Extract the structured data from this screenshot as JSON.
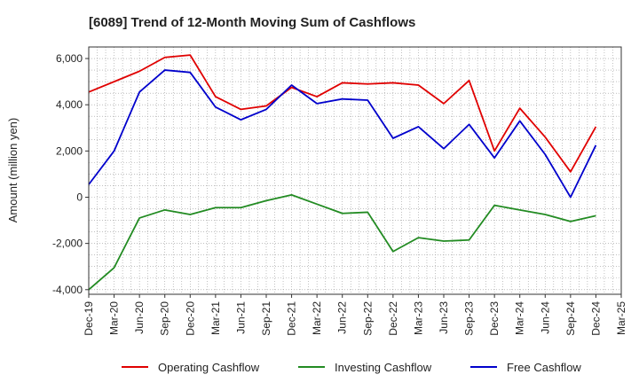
{
  "chart_data": {
    "type": "line",
    "title": "[6089]  Trend of 12-Month Moving Sum of Cashflows",
    "xlabel": "",
    "ylabel": "Amount (million yen)",
    "ylim": [
      -4200,
      6500
    ],
    "yticks": [
      -4000,
      -2000,
      0,
      2000,
      4000,
      6000
    ],
    "ytick_labels": [
      "-4,000",
      "-2,000",
      "0",
      "2,000",
      "4,000",
      "6,000"
    ],
    "x_tick_labels": [
      "Dec-19",
      "Mar-20",
      "Jun-20",
      "Sep-20",
      "Dec-20",
      "Mar-21",
      "Jun-21",
      "Sep-21",
      "Dec-21",
      "Mar-22",
      "Jun-22",
      "Sep-22",
      "Dec-22",
      "Mar-23",
      "Jun-23",
      "Sep-23",
      "Dec-23",
      "Mar-24",
      "Jun-24",
      "Sep-24",
      "Dec-24",
      "Mar-25"
    ],
    "x": [
      "Dec-19",
      "Mar-20",
      "Jun-20",
      "Sep-20",
      "Dec-20",
      "Mar-21",
      "Jun-21",
      "Sep-21",
      "Dec-21",
      "Mar-22",
      "Jun-22",
      "Sep-22",
      "Dec-22",
      "Mar-23",
      "Jun-23",
      "Sep-23",
      "Dec-23",
      "Mar-24",
      "Jun-24",
      "Sep-24",
      "Dec-24"
    ],
    "grid": true,
    "legend_position": "bottom",
    "series": [
      {
        "name": "Operating Cashflow",
        "color": "#e00000",
        "values": [
          4550,
          5000,
          5450,
          6050,
          6150,
          4350,
          3800,
          3950,
          4750,
          4350,
          4950,
          4900,
          4950,
          4850,
          4050,
          5050,
          2000,
          3850,
          2600,
          1100,
          3050
        ]
      },
      {
        "name": "Investing Cashflow",
        "color": "#228b22",
        "values": [
          -4000,
          -3050,
          -900,
          -550,
          -750,
          -450,
          -450,
          -150,
          100,
          -300,
          -700,
          -650,
          -2350,
          -1750,
          -1900,
          -1850,
          -350,
          -550,
          -750,
          -1050,
          -800
        ]
      },
      {
        "name": "Free Cashflow",
        "color": "#0000cc",
        "values": [
          550,
          2000,
          4550,
          5500,
          5400,
          3900,
          3350,
          3800,
          4850,
          4050,
          4250,
          4200,
          2550,
          3050,
          2100,
          3150,
          1700,
          3300,
          1850,
          0,
          2250
        ]
      }
    ]
  }
}
